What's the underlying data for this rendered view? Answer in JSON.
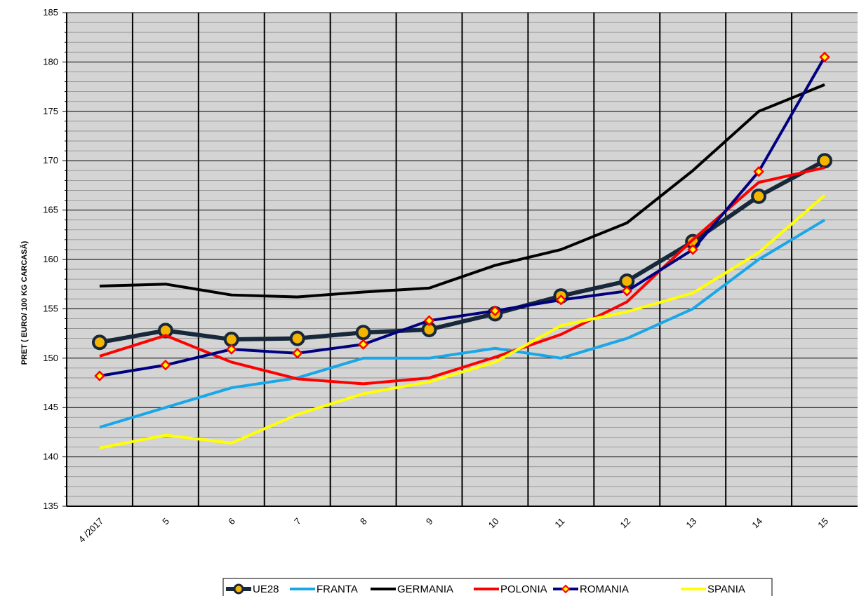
{
  "chart_data": {
    "type": "line",
    "title": "",
    "xlabel": "",
    "ylabel": "PRET ( EURO/ 100 KG CARCASĂ)",
    "categories": [
      "4 /2017",
      "5",
      "6",
      "7",
      "8",
      "9",
      "10",
      "11",
      "12",
      "13",
      "14",
      "15"
    ],
    "ylim": [
      135,
      185
    ],
    "yticks": [
      135,
      140,
      145,
      150,
      155,
      160,
      165,
      170,
      175,
      180,
      185
    ],
    "grid": true,
    "legend_position": "bottom",
    "series": [
      {
        "name": "UE28",
        "color": "#17283a",
        "marker": "circle-gold",
        "values": [
          151.6,
          152.8,
          151.9,
          152.0,
          152.6,
          152.9,
          154.5,
          156.3,
          157.8,
          161.8,
          166.4,
          170.0
        ]
      },
      {
        "name": "FRANTA",
        "color": "#1aa7e8",
        "marker": "none",
        "values": [
          143.0,
          145.0,
          147.0,
          148.0,
          150.0,
          150.0,
          151.0,
          150.0,
          152.0,
          155.0,
          160.0,
          164.0
        ]
      },
      {
        "name": "GERMANIA",
        "color": "#000000",
        "marker": "none",
        "values": [
          157.3,
          157.5,
          156.4,
          156.2,
          156.7,
          157.1,
          159.4,
          161.0,
          163.7,
          169.0,
          175.0,
          177.7
        ]
      },
      {
        "name": "POLONIA",
        "color": "#ff0000",
        "marker": "none",
        "values": [
          150.2,
          152.3,
          149.6,
          147.9,
          147.4,
          148.0,
          150.1,
          152.4,
          155.7,
          162.0,
          167.8,
          169.3
        ]
      },
      {
        "name": "ROMANIA",
        "color": "#000080",
        "marker": "diamond-red",
        "values": [
          148.2,
          149.3,
          150.9,
          150.5,
          151.4,
          153.8,
          154.8,
          155.9,
          156.8,
          161.0,
          168.9,
          180.5
        ]
      },
      {
        "name": "SPANIA",
        "color": "#ffff00",
        "marker": "none",
        "values": [
          140.9,
          142.2,
          141.4,
          144.3,
          146.4,
          147.6,
          149.6,
          153.3,
          154.7,
          156.6,
          160.7,
          166.5
        ]
      }
    ]
  }
}
